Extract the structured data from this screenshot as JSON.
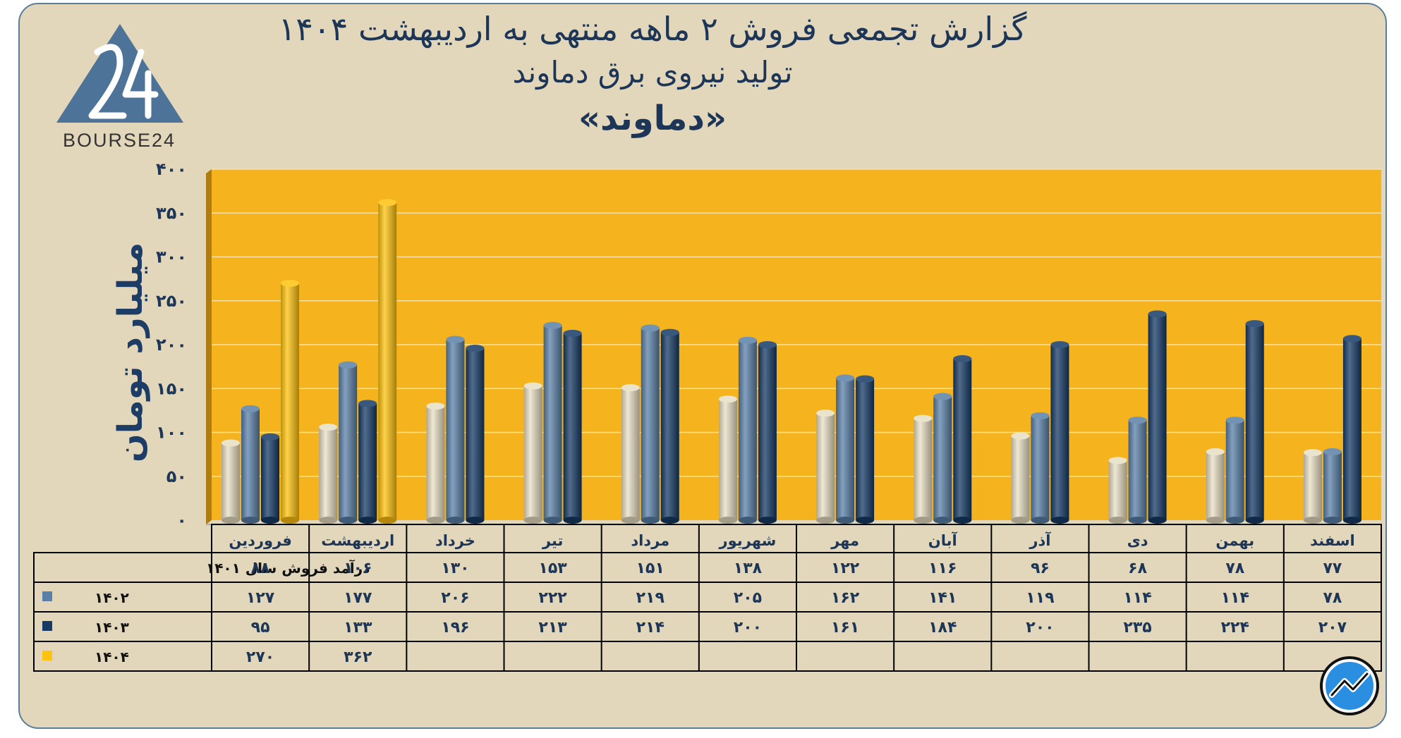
{
  "title_line1": "گزارش تجمعی فروش ۲ ماهه منتهی به اردیبهشت ۱۴۰۴",
  "title_line2": "تولید نیروی برق دماوند",
  "title_line3": "«دماوند»",
  "logo_text": "BOURSE24",
  "colors": {
    "background": "#e2d7ba",
    "plot": "#f5b31e",
    "series_1401": "#e8dfc4",
    "series_1402": "#5a80a8",
    "series_1403": "#163a66",
    "series_1404": "#ffc20e",
    "title": "#1d3557"
  },
  "chart_data": {
    "type": "bar",
    "title": "گزارش تجمعی فروش ۲ ماهه منتهی به اردیبهشت ۱۴۰۴",
    "ylabel": "میلیارد تومان",
    "ylim": [
      0,
      400
    ],
    "yticks": [
      "۰",
      "۵۰",
      "۱۰۰",
      "۱۵۰",
      "۲۰۰",
      "۲۵۰",
      "۳۰۰",
      "۳۵۰",
      "۴۰۰"
    ],
    "grid": true,
    "categories": [
      "فروردین",
      "اردیبهشت",
      "خرداد",
      "تیر",
      "مرداد",
      "شهریور",
      "مهر",
      "آبان",
      "آذر",
      "دی",
      "بهمن",
      "اسفند"
    ],
    "series": [
      {
        "name": "درآمد فروش سال ۱۴۰۱",
        "color": "#e8dfc4",
        "values": [
          88,
          106,
          130,
          153,
          151,
          138,
          122,
          116,
          96,
          68,
          78,
          77
        ],
        "labels": [
          "۸۸",
          "۱۰۶",
          "۱۳۰",
          "۱۵۳",
          "۱۵۱",
          "۱۳۸",
          "۱۲۲",
          "۱۱۶",
          "۹۶",
          "۶۸",
          "۷۸",
          "۷۷"
        ]
      },
      {
        "name": "۱۴۰۲",
        "color": "#5a80a8",
        "values": [
          127,
          177,
          206,
          222,
          219,
          205,
          162,
          141,
          119,
          114,
          114,
          78
        ],
        "labels": [
          "۱۲۷",
          "۱۷۷",
          "۲۰۶",
          "۲۲۲",
          "۲۱۹",
          "۲۰۵",
          "۱۶۲",
          "۱۴۱",
          "۱۱۹",
          "۱۱۴",
          "۱۱۴",
          "۷۸"
        ]
      },
      {
        "name": "۱۴۰۳",
        "color": "#163a66",
        "values": [
          95,
          133,
          196,
          213,
          214,
          200,
          161,
          184,
          200,
          235,
          224,
          207
        ],
        "labels": [
          "۹۵",
          "۱۳۳",
          "۱۹۶",
          "۲۱۳",
          "۲۱۴",
          "۲۰۰",
          "۱۶۱",
          "۱۸۴",
          "۲۰۰",
          "۲۳۵",
          "۲۲۴",
          "۲۰۷"
        ]
      },
      {
        "name": "۱۴۰۴",
        "color": "#ffc20e",
        "values": [
          270,
          362,
          null,
          null,
          null,
          null,
          null,
          null,
          null,
          null,
          null,
          null
        ],
        "labels": [
          "۲۷۰",
          "۳۶۲",
          "",
          "",
          "",
          "",
          "",
          "",
          "",
          "",
          "",
          ""
        ]
      }
    ]
  }
}
